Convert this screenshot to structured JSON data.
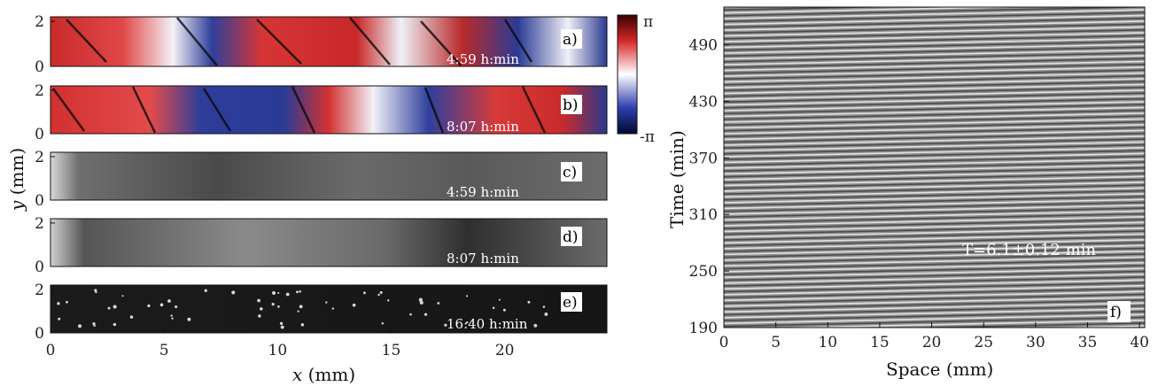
{
  "figure": {
    "left_xlabel_var": "x",
    "left_xlabel_unit": " (mm)",
    "left_ylabel_var": "y",
    "left_ylabel_unit": " (mm)",
    "right_xlabel": "Space (mm)",
    "right_ylabel": "Time (min)",
    "colorbar_max": "π",
    "colorbar_min": "-π",
    "annotation": "T=6.1±0.12 min"
  },
  "panels": [
    {
      "id": "a",
      "label": "a)",
      "time": "4:59 h:min",
      "kind": "phase"
    },
    {
      "id": "b",
      "label": "b)",
      "time": "8:07 h:min",
      "kind": "phase"
    },
    {
      "id": "c",
      "label": "c)",
      "time": "4:59 h:min",
      "kind": "gray"
    },
    {
      "id": "d",
      "label": "d)",
      "time": "8:07 h:min",
      "kind": "gray"
    },
    {
      "id": "e",
      "label": "e)",
      "time": "16:40 h:min",
      "kind": "dark"
    }
  ],
  "panel_f_label": "f)",
  "chart_data": [
    {
      "type": "heatmap",
      "panels": "a-e",
      "xlabel": "x (mm)",
      "ylabel": "y (mm)",
      "xlim": [
        0,
        24.5
      ],
      "ylim": [
        0,
        2.2
      ],
      "xticks": [
        "0",
        "5",
        "10",
        "15",
        "20"
      ],
      "yticks": [
        "0",
        "2"
      ],
      "colorbar": {
        "min": "-π",
        "max": "π"
      }
    },
    {
      "type": "heatmap",
      "panel": "f",
      "xlabel": "Space (mm)",
      "ylabel": "Time (min)",
      "xlim": [
        0,
        40.5
      ],
      "ylim": [
        190,
        530
      ],
      "xticks": [
        "0",
        "5",
        "10",
        "15",
        "20",
        "25",
        "30",
        "35",
        "40"
      ],
      "yticks": [
        "190",
        "250",
        "310",
        "370",
        "430",
        "490"
      ],
      "annotation": "T=6.1±0.12 min",
      "period_min": 6.1,
      "period_err_min": 0.12
    }
  ]
}
